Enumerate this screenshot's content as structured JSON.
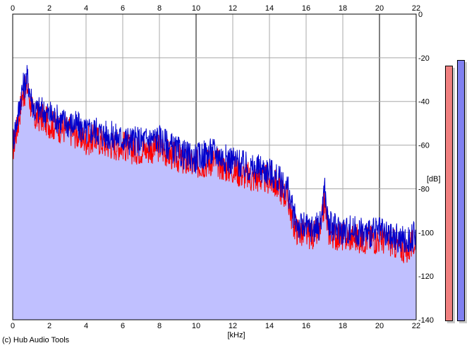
{
  "chart_data": {
    "type": "line",
    "xlabel": "[kHz]",
    "ylabel": "[dB]",
    "xlim": [
      0,
      22
    ],
    "ylim": [
      -140,
      0
    ],
    "x_ticks": [
      "0",
      "2",
      "4",
      "6",
      "8",
      "10",
      "12",
      "14",
      "16",
      "18",
      "20",
      "22"
    ],
    "y_ticks": [
      "0",
      "-20",
      "-40",
      "-60",
      "-80",
      "-100",
      "-120",
      "-140"
    ],
    "grid": true,
    "fill_color": "#c0c0ff",
    "series": [
      {
        "color": "#ff0000",
        "x": [
          0,
          0.3,
          0.5,
          0.7,
          0.8,
          1.0,
          1.2,
          1.5,
          2.0,
          2.5,
          3.0,
          3.5,
          4.0,
          4.5,
          5.0,
          5.5,
          6.0,
          6.5,
          7.0,
          7.5,
          8.0,
          8.5,
          9.0,
          9.5,
          10.0,
          10.5,
          11.0,
          11.5,
          12.0,
          12.5,
          13.0,
          13.5,
          14.0,
          14.5,
          15.0,
          15.3,
          15.6,
          16.0,
          16.5,
          16.8,
          17.0,
          17.2,
          17.5,
          18.0,
          18.5,
          19.0,
          19.5,
          20.0,
          20.5,
          21.0,
          21.5,
          22.0
        ],
        "values": [
          -62,
          -50,
          -38,
          -35,
          -33,
          -42,
          -48,
          -47,
          -50,
          -52,
          -53,
          -55,
          -58,
          -57,
          -59,
          -60,
          -60,
          -62,
          -62,
          -62,
          -61,
          -64,
          -66,
          -68,
          -69,
          -68,
          -67,
          -70,
          -71,
          -73,
          -75,
          -75,
          -76,
          -79,
          -84,
          -96,
          -100,
          -101,
          -101,
          -99,
          -86,
          -99,
          -101,
          -102,
          -102,
          -103,
          -103,
          -103,
          -104,
          -106,
          -108,
          -104
        ]
      },
      {
        "color": "#0000cc",
        "x": [
          0,
          0.3,
          0.5,
          0.7,
          0.8,
          1.0,
          1.2,
          1.5,
          2.0,
          2.5,
          3.0,
          3.5,
          4.0,
          4.5,
          5.0,
          5.5,
          6.0,
          6.5,
          7.0,
          7.5,
          8.0,
          8.5,
          9.0,
          9.5,
          10.0,
          10.5,
          11.0,
          11.5,
          12.0,
          12.5,
          13.0,
          13.5,
          14.0,
          14.5,
          15.0,
          15.3,
          15.6,
          16.0,
          16.5,
          16.8,
          17.0,
          17.2,
          17.5,
          18.0,
          18.5,
          19.0,
          19.5,
          20.0,
          20.5,
          21.0,
          21.5,
          22.0
        ],
        "values": [
          -58,
          -46,
          -35,
          -31,
          -29,
          -38,
          -44,
          -44,
          -46,
          -48,
          -50,
          -51,
          -54,
          -53,
          -55,
          -56,
          -57,
          -58,
          -58,
          -57,
          -57,
          -60,
          -63,
          -65,
          -66,
          -64,
          -63,
          -66,
          -67,
          -69,
          -71,
          -71,
          -72,
          -76,
          -80,
          -92,
          -97,
          -98,
          -98,
          -96,
          -79,
          -96,
          -98,
          -99,
          -99,
          -100,
          -100,
          -100,
          -102,
          -103,
          -104,
          -101
        ]
      }
    ]
  },
  "meters": {
    "left": {
      "color": "#f08080",
      "level": 0.89
    },
    "right": {
      "color": "#8080f0",
      "level": 0.91
    }
  },
  "footer": {
    "copyright": "(c) Hub Audio Tools"
  }
}
